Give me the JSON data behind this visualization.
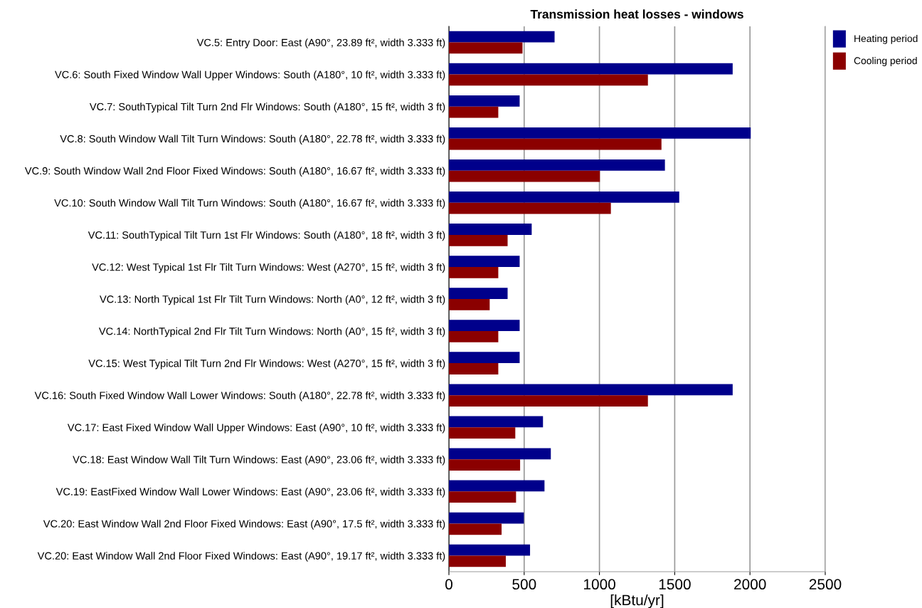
{
  "chart_data": {
    "type": "bar",
    "orientation": "horizontal",
    "title": "Transmission heat losses - windows",
    "xlabel": "[kBtu/yr]",
    "categories": [
      "VC.5: Entry Door: East (A90°, 23.89 ft², width 3.333 ft)",
      "VC.6: South Fixed Window Wall Upper Windows: South (A180°, 10 ft², width 3.333 ft)",
      "VC.7: SouthTypical Tilt Turn 2nd Flr Windows: South (A180°, 15 ft², width 3 ft)",
      "VC.8: South Window Wall Tilt Turn Windows: South (A180°, 22.78 ft², width 3.333 ft)",
      "VC.9: South Window Wall 2nd Floor Fixed Windows: South (A180°, 16.67 ft², width 3.333 ft)",
      "VC.10: South Window Wall Tilt Turn Windows: South (A180°, 16.67 ft², width 3.333 ft)",
      "VC.11: SouthTypical Tilt Turn 1st Flr Windows: South (A180°, 18 ft², width 3 ft)",
      "VC.12: West Typical 1st Flr Tilt Turn Windows: West (A270°, 15 ft², width 3 ft)",
      "VC.13: North Typical 1st Flr Tilt Turn Windows: North (A0°, 12 ft², width 3 ft)",
      "VC.14: NorthTypical 2nd Flr Tilt Turn Windows: North (A0°, 15 ft², width 3 ft)",
      "VC.15: West Typical Tilt Turn 2nd Flr Windows: West (A270°, 15 ft², width 3 ft)",
      "VC.16: South Fixed Window Wall Lower Windows: South (A180°, 22.78 ft², width 3.333 ft)",
      "VC.17: East Fixed Window Wall Upper Windows: East (A90°, 10 ft², width 3.333 ft)",
      "VC.18: East Window Wall Tilt Turn Windows: East (A90°, 23.06 ft², width 3.333 ft)",
      "VC.19: EastFixed Window Wall Lower Windows: East (A90°, 23.06 ft², width 3.333 ft)",
      "VC.20: East Window Wall 2nd Floor Fixed Windows: East (A90°, 17.5 ft², width 3.333 ft)",
      "VC.20: East Window Wall 2nd Floor Fixed Windows: East (A90°, 19.17 ft², width 3.333 ft)"
    ],
    "series": [
      {
        "name": "Heating period",
        "color": "#00008b",
        "values": [
          702,
          1885,
          470,
          2005,
          1435,
          1530,
          550,
          470,
          390,
          470,
          470,
          1885,
          625,
          677,
          635,
          498,
          539
        ]
      },
      {
        "name": "Cooling period",
        "color": "#8b0000",
        "values": [
          489,
          1322,
          328,
          1412,
          1003,
          1076,
          390,
          328,
          271,
          328,
          328,
          1322,
          441,
          473,
          446,
          350,
          378
        ]
      }
    ],
    "xlim": [
      0,
      2500
    ],
    "xticks": [
      0,
      500,
      1000,
      1500,
      2000,
      2500
    ],
    "grid": "x",
    "legend": "top right"
  }
}
